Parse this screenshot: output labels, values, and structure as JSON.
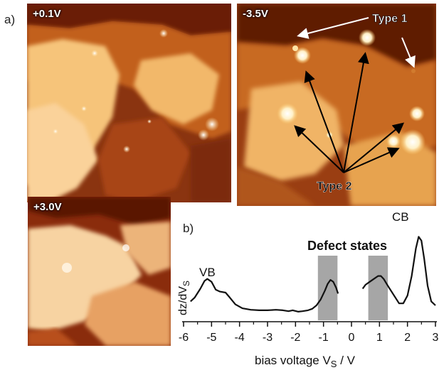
{
  "figure": {
    "panel_a_label": "a)",
    "panel_b_label": "b)"
  },
  "stm_images": [
    {
      "bias": "+0.1V"
    },
    {
      "bias": "-3.5V",
      "annotations": {
        "type1": "Type 1",
        "type2": "Type 2"
      }
    },
    {
      "bias": "+3.0V"
    }
  ],
  "spectrum": {
    "ylabel": "dz/dV",
    "ylabel_sub": "S",
    "xlabel_prefix": "bias voltage V",
    "xlabel_sub": "S",
    "xlabel_suffix": " / V",
    "vb_label": "VB",
    "cb_label": "CB",
    "defect_label": "Defect states",
    "colors": {
      "shade": "#a6a6a6",
      "curve": "#111111"
    }
  },
  "chart_data": {
    "type": "line",
    "xlabel": "bias voltage VS / V",
    "ylabel": "dz/dVS",
    "xlim": [
      -6,
      3
    ],
    "xticks": [
      -6,
      -5,
      -4,
      -3,
      -2,
      -1,
      0,
      1,
      2,
      3
    ],
    "shaded_regions": [
      [
        -1.2,
        -0.5
      ],
      [
        0.6,
        1.3
      ]
    ],
    "annotations": [
      "VB",
      "CB",
      "Defect states"
    ],
    "series": [
      {
        "segments": [
          [
            [
              -5.75,
              0.12
            ],
            [
              -5.6,
              0.16
            ],
            [
              -5.4,
              0.25
            ],
            [
              -5.25,
              0.33
            ],
            [
              -5.15,
              0.35
            ],
            [
              -5.0,
              0.32
            ],
            [
              -4.85,
              0.24
            ],
            [
              -4.7,
              0.22
            ],
            [
              -4.5,
              0.21
            ],
            [
              -4.35,
              0.16
            ],
            [
              -4.15,
              0.09
            ],
            [
              -3.9,
              0.05
            ],
            [
              -3.6,
              0.035
            ],
            [
              -3.3,
              0.03
            ],
            [
              -3.0,
              0.03
            ],
            [
              -2.7,
              0.035
            ],
            [
              -2.45,
              0.03
            ],
            [
              -2.25,
              0.02
            ],
            [
              -2.1,
              0.03
            ],
            [
              -1.9,
              0.015
            ],
            [
              -1.75,
              0.02
            ],
            [
              -1.55,
              0.03
            ],
            [
              -1.4,
              0.045
            ],
            [
              -1.25,
              0.08
            ],
            [
              -1.1,
              0.14
            ],
            [
              -0.95,
              0.23
            ],
            [
              -0.85,
              0.3
            ],
            [
              -0.75,
              0.34
            ],
            [
              -0.65,
              0.32
            ],
            [
              -0.55,
              0.26
            ],
            [
              -0.48,
              0.2
            ]
          ],
          [
            [
              0.4,
              0.25
            ],
            [
              0.5,
              0.29
            ],
            [
              0.65,
              0.32
            ],
            [
              0.8,
              0.35
            ],
            [
              0.95,
              0.38
            ],
            [
              1.05,
              0.38
            ],
            [
              1.15,
              0.35
            ],
            [
              1.3,
              0.28
            ],
            [
              1.5,
              0.19
            ],
            [
              1.7,
              0.1
            ],
            [
              1.85,
              0.1
            ],
            [
              2.0,
              0.18
            ],
            [
              2.15,
              0.38
            ],
            [
              2.3,
              0.66
            ],
            [
              2.4,
              0.78
            ],
            [
              2.5,
              0.74
            ],
            [
              2.6,
              0.55
            ],
            [
              2.72,
              0.28
            ],
            [
              2.85,
              0.12
            ],
            [
              3.0,
              0.08
            ]
          ]
        ]
      }
    ]
  }
}
